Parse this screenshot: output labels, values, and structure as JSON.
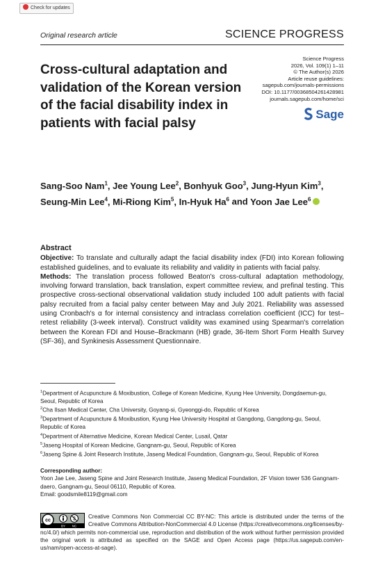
{
  "badge": "Check for updates",
  "header": {
    "article_type": "Original research article",
    "journal": "SCIENCE PROGRESS"
  },
  "title": "Cross-cultural adaptation and validation of the Korean version of the facial disability index in patients with facial palsy",
  "meta": [
    "Science Progress",
    "2026, Vol. 109(1) 1–11",
    "© The Author(s) 2026",
    "Article reuse guidelines:",
    "sagepub.com/journals-permissions",
    "DOI: 10.1177/00368504261428981",
    "journals.sagepub.com/home/sci"
  ],
  "publisher": "Sage",
  "authors": [
    {
      "name": "Sang-Soo Nam",
      "affiliation": 1,
      "separator": ","
    },
    {
      "name": "Jee Young Lee",
      "affiliation": 2,
      "separator": ","
    },
    {
      "name": "Bonhyuk Goo",
      "affiliation": 3,
      "separator": ","
    },
    {
      "name": "Jung-Hyun Kim",
      "affiliation": 3,
      "separator": ","
    },
    {
      "name": "Seung-Min Lee",
      "affiliation": 4,
      "separator": ","
    },
    {
      "name": "Mi-Riong Kim",
      "affiliation": 5,
      "separator": ","
    },
    {
      "name": "In-Hyuk Ha",
      "affiliation": 6,
      "separator": "and"
    },
    {
      "name": "Yoon Jae Lee",
      "affiliation": 6
    }
  ],
  "abstract": {
    "heading": "Abstract",
    "sections": [
      {
        "label": "Objective:",
        "text": "To translate and culturally adapt the facial disability index (FDI) into Korean following established guidelines, and to evaluate its reliability and validity in patients with facial palsy."
      },
      {
        "label": "Methods:",
        "text": "The translation process followed Beaton's cross-cultural adaptation methodology, involving forward translation, back translation, expert committee review, and prefinal testing. This prospective cross-sectional observational validation study included 100 adult patients with facial palsy recruited from a facial palsy center between May and July 2021. Reliability was assessed using Cronbach's α for internal consistency and intraclass correlation coefficient (ICC) for test–retest reliability (3-week interval). Construct validity was examined using Spearman's correlation between the Korean FDI and House–Brackmann (HB) grade, 36-Item Short Form Health Survey (SF-36), and Synkinesis Assessment Questionnaire."
      }
    ]
  },
  "affiliations": [
    {
      "number": 1,
      "text": "Department of Acupuncture & Moxibustion, College of Korean Medicine, Kyung Hee University, Dongdaemun-gu, Seoul, Republic of Korea"
    },
    {
      "number": 2,
      "text": "Cha Ilsan Medical Center, Cha University, Goyang-si, Gyeonggi-do, Republic of Korea"
    },
    {
      "number": 3,
      "text": "Department of Acupuncture & Moxibustion, Kyung Hee University Hospital at Gangdong, Gangdong-gu, Seoul, Republic of Korea"
    },
    {
      "number": 4,
      "text": "Department of Alternative Medicine, Korean Medical Center, Lusail, Qatar"
    },
    {
      "number": 5,
      "text": "Jaseng Hospital of Korean Medicine, Gangnam-gu, Seoul, Republic of Korea"
    },
    {
      "number": 6,
      "text": "Jaseng Spine & Joint Research Institute, Jaseng Medical Foundation, Gangnam-gu, Seoul, Republic of Korea"
    }
  ],
  "corresponding": {
    "heading": "Corresponding author:",
    "lines": [
      "Yoon Jae Lee, Jaseng Spine and Joint Research Institute, Jaseng Medical Foundation, 2F Vision tower 536 Gangnam-daero, Gangnam-gu, Seoul 06110, Republic of Korea.",
      "Email: goodsmile8119@gmail.com"
    ]
  },
  "license": {
    "badge": [
      "BY",
      "NC"
    ],
    "text": "Creative Commons Non Commercial CC BY-NC: This article is distributed under the terms of the Creative Commons Attribution-NonCommercial 4.0 License (https://creativecommons.org/licenses/by-nc/4.0/) which permits non-commercial use, reproduction and distribution of the work without further permission provided the original work is attributed as specified on the SAGE and Open Access page (https://us.sagepub.com/en-us/nam/open-access-at-sage)."
  }
}
